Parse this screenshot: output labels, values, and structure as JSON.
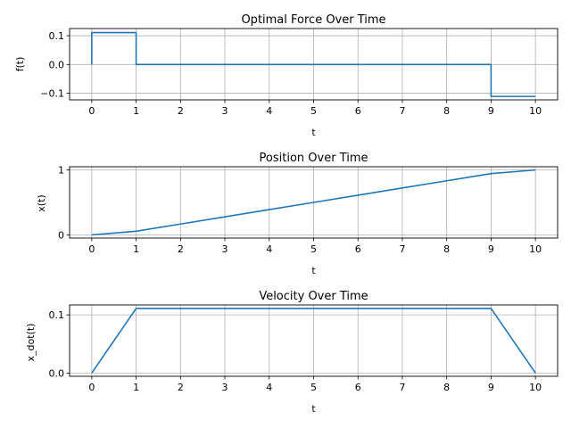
{
  "chart_data": [
    {
      "type": "line",
      "step": true,
      "title": "Optimal Force Over Time",
      "xlabel": "t",
      "ylabel": "f(t)",
      "xlim": [
        -0.5,
        10.5
      ],
      "ylim": [
        -0.123,
        0.125
      ],
      "xticks": [
        0,
        1,
        2,
        3,
        4,
        5,
        6,
        7,
        8,
        9,
        10
      ],
      "xtick_labels": [
        "0",
        "1",
        "2",
        "3",
        "4",
        "5",
        "6",
        "7",
        "8",
        "9",
        "10"
      ],
      "yticks": [
        0.1,
        0.0,
        -0.1
      ],
      "ytick_labels": [
        "0.1",
        "0.0",
        "−0.1"
      ],
      "grid": true,
      "series": [
        {
          "name": "f(t)",
          "color": "#1f77b4",
          "x": [
            0,
            0,
            1,
            1,
            9,
            9,
            10
          ],
          "y": [
            0,
            0.111,
            0.111,
            0,
            0,
            -0.111,
            -0.111
          ]
        }
      ]
    },
    {
      "type": "line",
      "title": "Position Over Time",
      "xlabel": "t",
      "ylabel": "x(t)",
      "xlim": [
        -0.5,
        10.5
      ],
      "ylim": [
        -0.05,
        1.05
      ],
      "xticks": [
        0,
        1,
        2,
        3,
        4,
        5,
        6,
        7,
        8,
        9,
        10
      ],
      "xtick_labels": [
        "0",
        "1",
        "2",
        "3",
        "4",
        "5",
        "6",
        "7",
        "8",
        "9",
        "10"
      ],
      "yticks": [
        1,
        0
      ],
      "ytick_labels": [
        "1",
        "0"
      ],
      "grid": true,
      "series": [
        {
          "name": "x(t)",
          "color": "#1f77b4",
          "x": [
            0,
            1,
            2,
            3,
            4,
            5,
            6,
            7,
            8,
            9,
            10
          ],
          "y": [
            0,
            0.0556,
            0.1667,
            0.2778,
            0.3889,
            0.5,
            0.6111,
            0.7222,
            0.8333,
            0.9444,
            1.0
          ]
        }
      ]
    },
    {
      "type": "line",
      "title": "Velocity Over Time",
      "xlabel": "t",
      "ylabel": "x_dot(t)",
      "xlim": [
        -0.5,
        10.5
      ],
      "ylim": [
        -0.0056,
        0.117
      ],
      "xticks": [
        0,
        1,
        2,
        3,
        4,
        5,
        6,
        7,
        8,
        9,
        10
      ],
      "xtick_labels": [
        "0",
        "1",
        "2",
        "3",
        "4",
        "5",
        "6",
        "7",
        "8",
        "9",
        "10"
      ],
      "yticks": [
        0.1,
        0.0
      ],
      "ytick_labels": [
        "0.1",
        "0.0"
      ],
      "grid": true,
      "series": [
        {
          "name": "x_dot(t)",
          "color": "#1f77b4",
          "x": [
            0,
            1,
            9,
            10
          ],
          "y": [
            0,
            0.111,
            0.111,
            0
          ]
        }
      ]
    }
  ]
}
